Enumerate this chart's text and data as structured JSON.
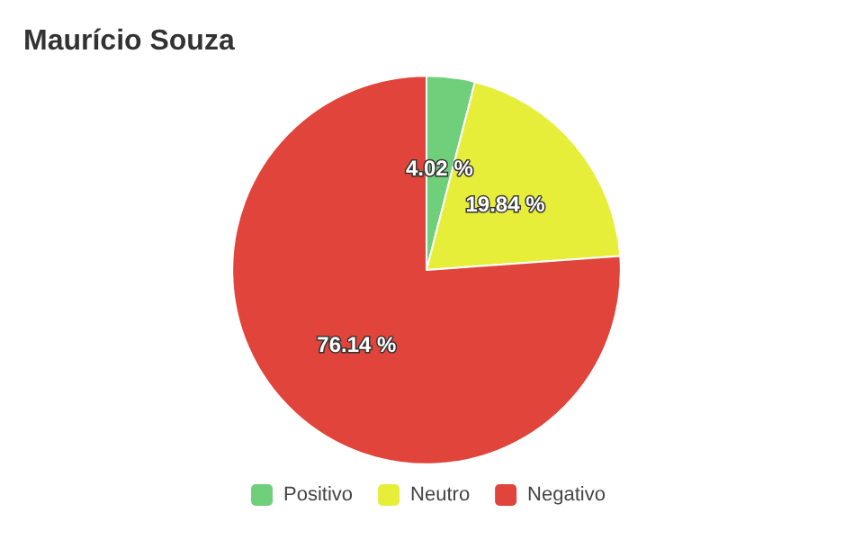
{
  "chart_data": {
    "type": "pie",
    "title": "Maurício Souza",
    "categories": [
      "Positivo",
      "Neutro",
      "Negativo"
    ],
    "values": [
      4.02,
      19.84,
      76.14
    ],
    "colors": [
      "#6fcf7a",
      "#e6ee3a",
      "#e0443b"
    ],
    "value_labels": [
      "4.02 %",
      "19.84 %",
      "76.14 %"
    ],
    "legend": "bottom"
  }
}
